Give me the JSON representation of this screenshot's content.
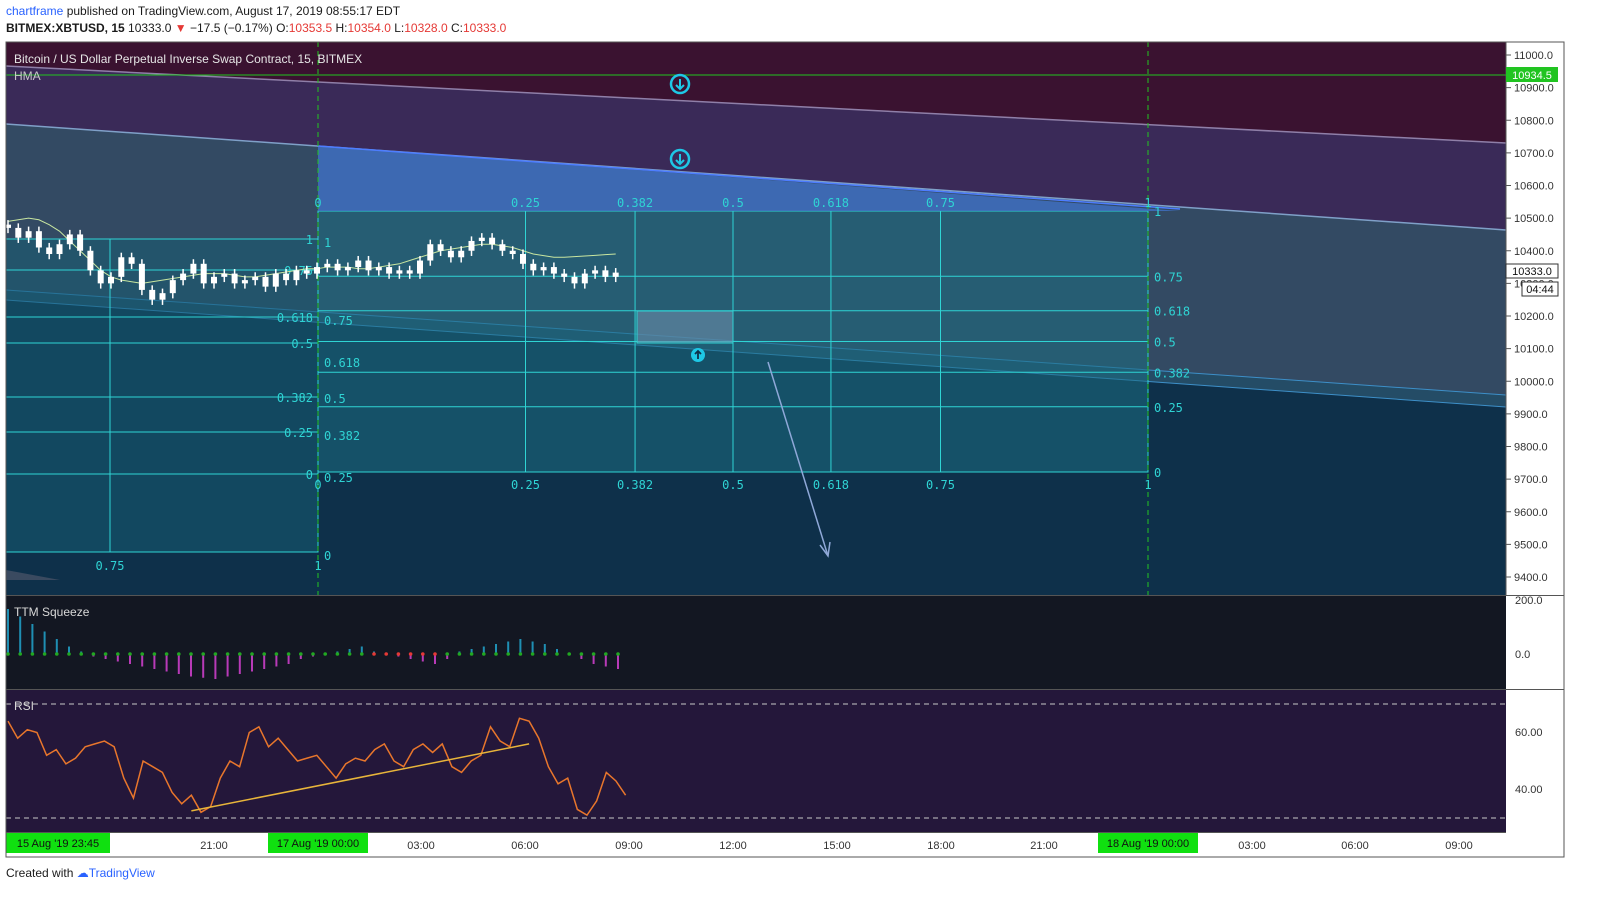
{
  "header": {
    "author": "chartframe",
    "published_text": "published on TradingView.com, August 17, 2019 08:55:17 EDT",
    "symbol": "BITMEX:XBTUSD, 15",
    "last": "10333.0",
    "change_arrow": "▼",
    "change": "−17.5 (−0.17%)",
    "o_label": "O:",
    "o_val": "10353.5",
    "h_label": "H:",
    "h_val": "10354.0",
    "l_label": "L:",
    "l_val": "10328.0",
    "c_label": "C:",
    "c_val": "10333.0"
  },
  "footer": {
    "created_with": "Created with",
    "brand": "TradingView"
  },
  "chart_data": [
    {
      "type": "candlestick",
      "title": "Bitcoin / US Dollar Perpetual Inverse Swap Contract, 15, BITMEX",
      "indicator": "HMA",
      "y_ticks": [
        11000.0,
        10900.0,
        10800.0,
        10700.0,
        10600.0,
        10500.0,
        10400.0,
        10300.0,
        10200.0,
        10100.0,
        10000.0,
        9900.0,
        9800.0,
        9700.0,
        9600.0,
        9500.0,
        9400.0
      ],
      "ylim": [
        9350,
        11030
      ],
      "y_tick_labels": [
        "11000.0",
        "10900.0",
        "10800.0",
        "10700.0",
        "10600.0",
        "10500.0",
        "10400.0",
        "10300.0",
        "10200.0",
        "10100.0",
        "10000.0",
        "9900.0",
        "9800.0",
        "9700.0",
        "9600.0",
        "9500.0",
        "9400.0"
      ],
      "price_label": "10333.0",
      "countdown": "04:44",
      "level_label": "10934.5",
      "level_value": 10934.5,
      "close_series": [
        10470,
        10440,
        10460,
        10410,
        10390,
        10420,
        10450,
        10400,
        10340,
        10300,
        10320,
        10380,
        10360,
        10280,
        10250,
        10270,
        10310,
        10330,
        10360,
        10300,
        10320,
        10330,
        10300,
        10310,
        10320,
        10290,
        10330,
        10310,
        10340,
        10330,
        10350,
        10360,
        10340,
        10350,
        10370,
        10340,
        10350,
        10330,
        10340,
        10330,
        10370,
        10420,
        10400,
        10380,
        10400,
        10430,
        10440,
        10420,
        10400,
        10390,
        10360,
        10340,
        10350,
        10330,
        10320,
        10300,
        10330,
        10340,
        10320,
        10333
      ],
      "hma_series": [
        10490,
        10495,
        10500,
        10495,
        10480,
        10460,
        10430,
        10400,
        10370,
        10340,
        10320,
        10310,
        10305,
        10300,
        10305,
        10310,
        10315,
        10320,
        10325,
        10330,
        10330,
        10330,
        10325,
        10320,
        10320,
        10325,
        10330,
        10335,
        10340,
        10345,
        10345,
        10350,
        10350,
        10350,
        10345,
        10345,
        10350,
        10355,
        10360,
        10370,
        10380,
        10390,
        10400,
        10405,
        10410,
        10415,
        10420,
        10420,
        10415,
        10410,
        10400,
        10390,
        10385,
        10380,
        10380,
        10382,
        10384,
        10386,
        10388,
        10390
      ],
      "fib_levels": [
        "0",
        "0.25",
        "0.382",
        "0.5",
        "0.618",
        "0.75",
        "1"
      ],
      "fib_levels_left": [
        "0",
        "0.25",
        "0.382",
        "0.5",
        "0.618",
        "0.75",
        "1"
      ],
      "fib_h_labels": [
        "0",
        "0.25",
        "0.382",
        "0.5",
        "0.618",
        "0.75",
        "1"
      ]
    },
    {
      "type": "bar",
      "title": "TTM Squeeze",
      "y_tick_labels": [
        "200.0",
        "0.0"
      ],
      "ylim": [
        -160,
        200
      ],
      "values": [
        180,
        150,
        120,
        90,
        60,
        30,
        10,
        -10,
        -20,
        -30,
        -40,
        -50,
        -60,
        -70,
        -80,
        -90,
        -95,
        -100,
        -90,
        -80,
        -70,
        -60,
        -50,
        -40,
        -20,
        -10,
        0,
        10,
        20,
        30,
        10,
        0,
        -10,
        -20,
        -30,
        -40,
        -20,
        10,
        20,
        30,
        40,
        50,
        60,
        50,
        40,
        20,
        0,
        -20,
        -40,
        -50,
        -60
      ],
      "dot_colors": [
        "#21a821",
        "#21a821",
        "#21a821",
        "#21a821",
        "#21a821",
        "#21a821",
        "#21a821",
        "#21a821",
        "#21a821",
        "#21a821",
        "#21a821",
        "#21a821",
        "#21a821",
        "#21a821",
        "#21a821",
        "#21a821",
        "#21a821",
        "#21a821",
        "#21a821",
        "#21a821",
        "#21a821",
        "#21a821",
        "#21a821",
        "#21a821",
        "#21a821",
        "#21a821",
        "#21a821",
        "#21a821",
        "#21a821",
        "#21a821",
        "#e53935",
        "#e53935",
        "#e53935",
        "#e53935",
        "#e53935",
        "#e53935",
        "#21a821",
        "#21a821",
        "#21a821",
        "#21a821",
        "#21a821",
        "#21a821",
        "#21a821",
        "#21a821",
        "#21a821",
        "#21a821",
        "#21a821",
        "#21a821",
        "#21a821",
        "#21a821",
        "#21a821"
      ]
    },
    {
      "type": "line",
      "title": "RSI",
      "y_tick_labels": [
        "60.00",
        "40.00"
      ],
      "ylim": [
        25,
        75
      ],
      "bands": [
        70,
        30
      ],
      "values": [
        64,
        58,
        61,
        60,
        52,
        54,
        49,
        51,
        55,
        56,
        57,
        55,
        44,
        37,
        50,
        48,
        46,
        39,
        35,
        38,
        32,
        34,
        44,
        50,
        48,
        60,
        62,
        55,
        58,
        54,
        50,
        51,
        52,
        48,
        44,
        49,
        51,
        50,
        54,
        56,
        50,
        48,
        54,
        56,
        53,
        56,
        48,
        46,
        50,
        52,
        62,
        57,
        55,
        65,
        64,
        58,
        48,
        42,
        44,
        33,
        31,
        36,
        46,
        43,
        38
      ],
      "trendline": [
        [
          19,
          32.5
        ],
        [
          54,
          56
        ]
      ]
    }
  ],
  "x_axis": {
    "labels": [
      "15 Aug '19   23:45",
      "21:00",
      "17 Aug '19   00:00",
      "03:00",
      "06:00",
      "09:00",
      "12:00",
      "15:00",
      "18:00",
      "21:00",
      "18 Aug '19   00:00",
      "03:00",
      "06:00",
      "09:00"
    ],
    "highlight": [
      true,
      false,
      true,
      false,
      false,
      false,
      false,
      false,
      false,
      false,
      true,
      false,
      false,
      false
    ]
  },
  "colors": {
    "background_top": "#3a1230",
    "band_purple": "#3a2a58",
    "channel_dark": "#2b3a57",
    "fib_fill": "#1c6d82",
    "fib_line": "#2fd4d4",
    "candle": "#ffffff",
    "hma": "#c8e6a0",
    "rsi": "#e8762c",
    "rsi_trend": "#e8b53a",
    "osc_pos": "#1f8fb3",
    "osc_neg": "#b83ab8",
    "axis_green": "#10e010",
    "arrow_icon": "#1ec8e6"
  }
}
